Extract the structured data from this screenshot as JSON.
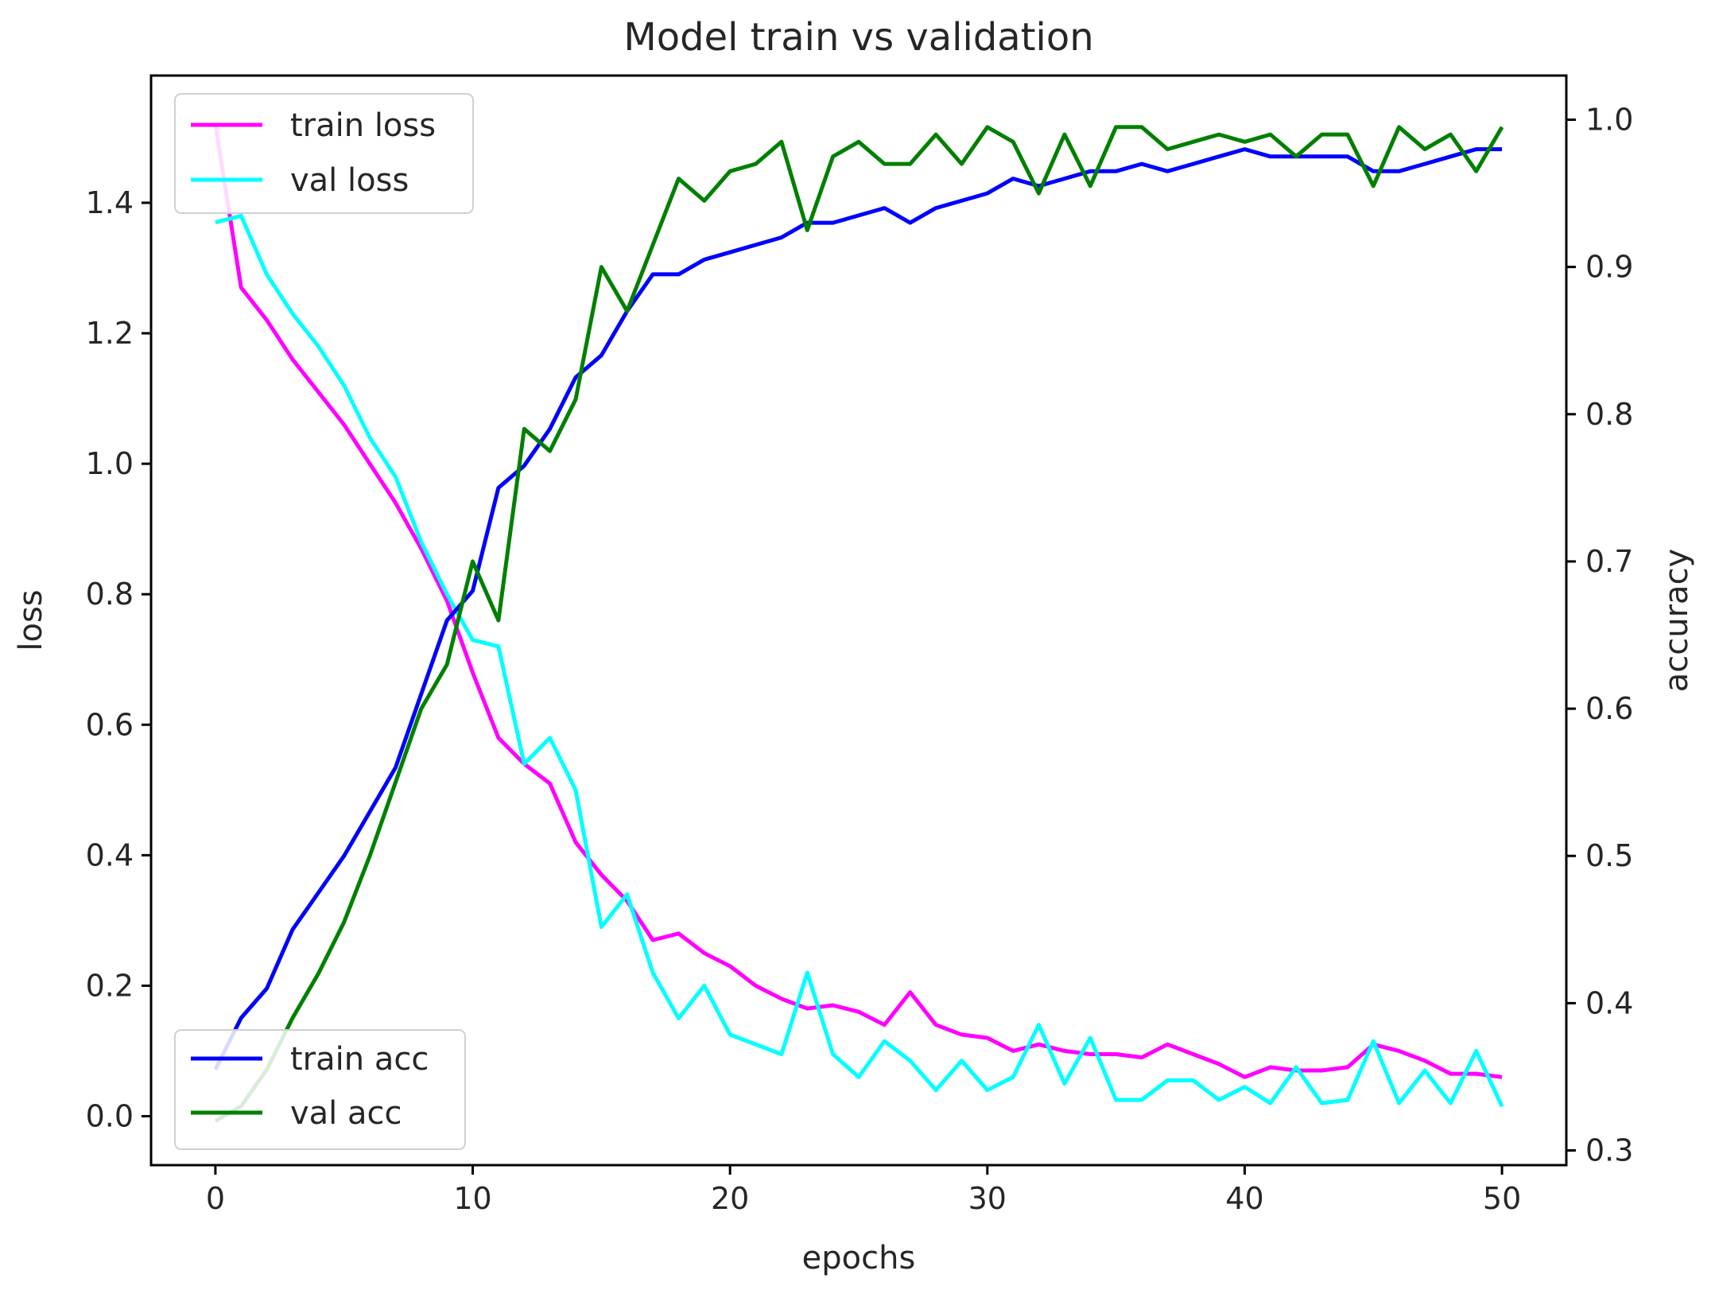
{
  "chart_data": {
    "type": "line",
    "title": "Model train vs validation",
    "xlabel": "epochs",
    "ylabel": "loss",
    "y2label": "accuracy",
    "xlim": [
      -2.5,
      52.5
    ],
    "ylim": [
      -0.075,
      1.595
    ],
    "y2lim": [
      0.29,
      1.03
    ],
    "x_ticks": [
      0,
      10,
      20,
      30,
      40,
      50
    ],
    "y_ticks": [
      0.0,
      0.2,
      0.4,
      0.6,
      0.8,
      1.0,
      1.2,
      1.4
    ],
    "y2_ticks": [
      0.3,
      0.4,
      0.5,
      0.6,
      0.7,
      0.8,
      0.9,
      1.0
    ],
    "grid": false,
    "legends": [
      {
        "placement": "upper-left",
        "entries": [
          "train loss",
          "val loss"
        ]
      },
      {
        "placement": "lower-left",
        "entries": [
          "train acc",
          "val acc"
        ]
      }
    ],
    "x": [
      0,
      1,
      2,
      3,
      4,
      5,
      6,
      7,
      8,
      9,
      10,
      11,
      12,
      13,
      14,
      15,
      16,
      17,
      18,
      19,
      20,
      21,
      22,
      23,
      24,
      25,
      26,
      27,
      28,
      29,
      30,
      31,
      32,
      33,
      34,
      35,
      36,
      37,
      38,
      39,
      40,
      41,
      42,
      43,
      44,
      45,
      46,
      47,
      48,
      49,
      50
    ],
    "series": [
      {
        "name": "train loss",
        "axis": "left",
        "color": "#ff00ff",
        "values": [
          1.52,
          1.27,
          1.22,
          1.16,
          1.11,
          1.06,
          1.0,
          0.94,
          0.87,
          0.79,
          0.68,
          0.58,
          0.54,
          0.51,
          0.42,
          0.37,
          0.33,
          0.27,
          0.28,
          0.25,
          0.23,
          0.2,
          0.18,
          0.165,
          0.17,
          0.16,
          0.14,
          0.19,
          0.14,
          0.125,
          0.12,
          0.1,
          0.11,
          0.1,
          0.095,
          0.095,
          0.09,
          0.11,
          0.095,
          0.08,
          0.06,
          0.075,
          0.07,
          0.07,
          0.075,
          0.11,
          0.1,
          0.085,
          0.065,
          0.065,
          0.06
        ]
      },
      {
        "name": "val loss",
        "axis": "left",
        "color": "#00ffff",
        "values": [
          1.37,
          1.38,
          1.29,
          1.23,
          1.18,
          1.12,
          1.04,
          0.98,
          0.88,
          0.8,
          0.73,
          0.72,
          0.54,
          0.58,
          0.5,
          0.29,
          0.34,
          0.22,
          0.15,
          0.2,
          0.125,
          0.11,
          0.095,
          0.22,
          0.095,
          0.06,
          0.115,
          0.085,
          0.04,
          0.085,
          0.04,
          0.06,
          0.14,
          0.05,
          0.12,
          0.025,
          0.025,
          0.055,
          0.055,
          0.025,
          0.045,
          0.02,
          0.075,
          0.02,
          0.025,
          0.115,
          0.02,
          0.07,
          0.02,
          0.1,
          0.015
        ]
      },
      {
        "name": "train acc",
        "axis": "right",
        "color": "#0000ff",
        "values": [
          0.355,
          0.39,
          0.41,
          0.45,
          0.475,
          0.5,
          0.53,
          0.56,
          0.61,
          0.66,
          0.68,
          0.75,
          0.765,
          0.79,
          0.825,
          0.84,
          0.87,
          0.895,
          0.895,
          0.905,
          0.91,
          0.915,
          0.92,
          0.93,
          0.93,
          0.935,
          0.94,
          0.93,
          0.94,
          0.945,
          0.95,
          0.96,
          0.955,
          0.96,
          0.965,
          0.965,
          0.97,
          0.965,
          0.97,
          0.975,
          0.98,
          0.975,
          0.975,
          0.975,
          0.975,
          0.965,
          0.965,
          0.97,
          0.975,
          0.98,
          0.98
        ]
      },
      {
        "name": "val acc",
        "axis": "right",
        "color": "#008000",
        "values": [
          0.32,
          0.33,
          0.355,
          0.39,
          0.42,
          0.455,
          0.5,
          0.55,
          0.6,
          0.63,
          0.7,
          0.66,
          0.79,
          0.775,
          0.81,
          0.9,
          0.87,
          0.915,
          0.96,
          0.945,
          0.965,
          0.97,
          0.985,
          0.925,
          0.975,
          0.985,
          0.97,
          0.97,
          0.99,
          0.97,
          0.995,
          0.985,
          0.95,
          0.99,
          0.955,
          0.995,
          0.995,
          0.98,
          0.985,
          0.99,
          0.985,
          0.99,
          0.975,
          0.99,
          0.99,
          0.955,
          0.995,
          0.98,
          0.99,
          0.965,
          0.995
        ]
      }
    ]
  }
}
